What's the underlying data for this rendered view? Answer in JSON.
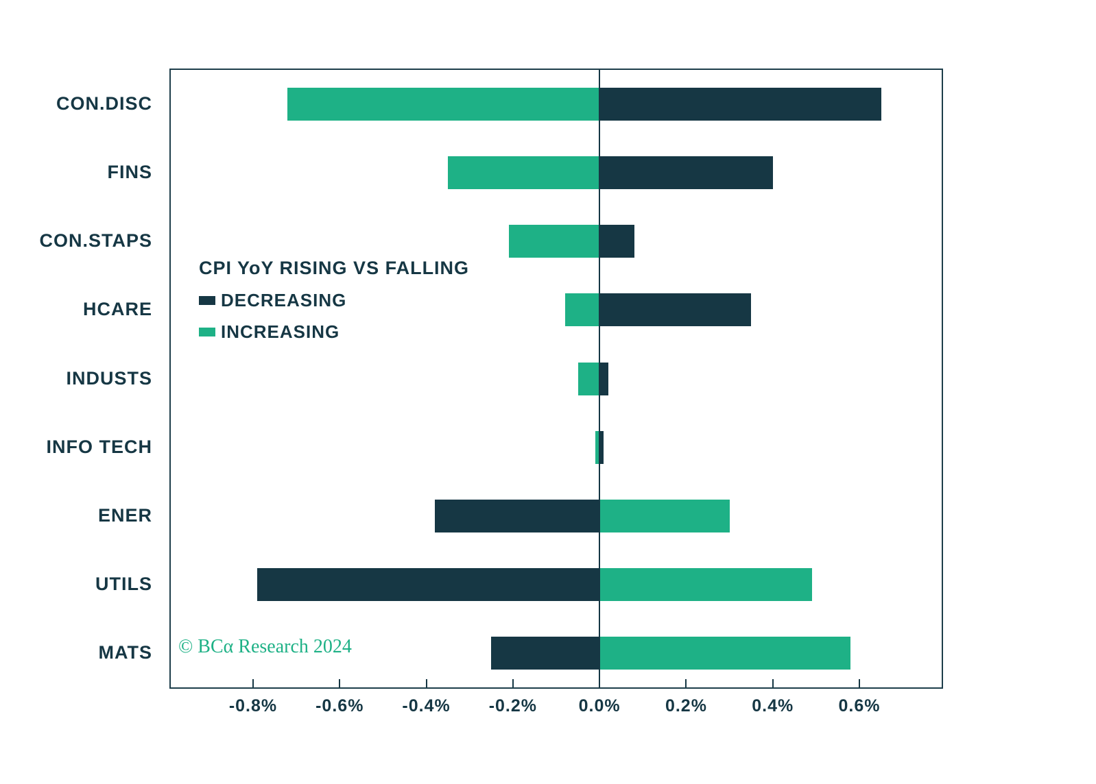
{
  "meta": {
    "copyright": "© BCα Research 2024"
  },
  "legend": {
    "title": "CPI YoY RISING VS FALLING",
    "items": [
      {
        "label": "DECREASING",
        "color": "#163744"
      },
      {
        "label": "INCREASING",
        "color": "#1EB186"
      }
    ]
  },
  "colors": {
    "decreasing": "#163744",
    "increasing": "#1EB186",
    "axis": "#163744",
    "border": "#1d3d4a"
  },
  "chart_data": {
    "type": "bar",
    "orientation": "horizontal",
    "title": "CPI YoY RISING VS FALLING",
    "xlabel": "",
    "ylabel": "",
    "unit": "%",
    "categories": [
      "CON.DISC",
      "FINS",
      "CON.STAPS",
      "HCARE",
      "INDUSTS",
      "INFO TECH",
      "ENER",
      "UTILS",
      "MATS"
    ],
    "series": [
      {
        "name": "DECREASING",
        "color": "#163744",
        "values": [
          0.65,
          0.4,
          0.08,
          0.35,
          0.02,
          0.01,
          -0.38,
          -0.79,
          -0.25
        ]
      },
      {
        "name": "INCREASING",
        "color": "#1EB186",
        "values": [
          -0.72,
          -0.35,
          -0.21,
          -0.08,
          -0.05,
          -0.01,
          0.3,
          0.49,
          0.58
        ]
      }
    ],
    "x_ticks": [
      "-0.8%",
      "-0.6%",
      "-0.4%",
      "-0.2%",
      "0.0%",
      "0.2%",
      "0.4%",
      "0.6%"
    ],
    "x_tick_values": [
      -0.8,
      -0.6,
      -0.4,
      -0.2,
      0,
      0.2,
      0.4,
      0.6
    ],
    "xlim": [
      -0.99,
      0.79
    ],
    "grid": false,
    "legend_position": "inside-upper-left",
    "baseline": 0
  }
}
